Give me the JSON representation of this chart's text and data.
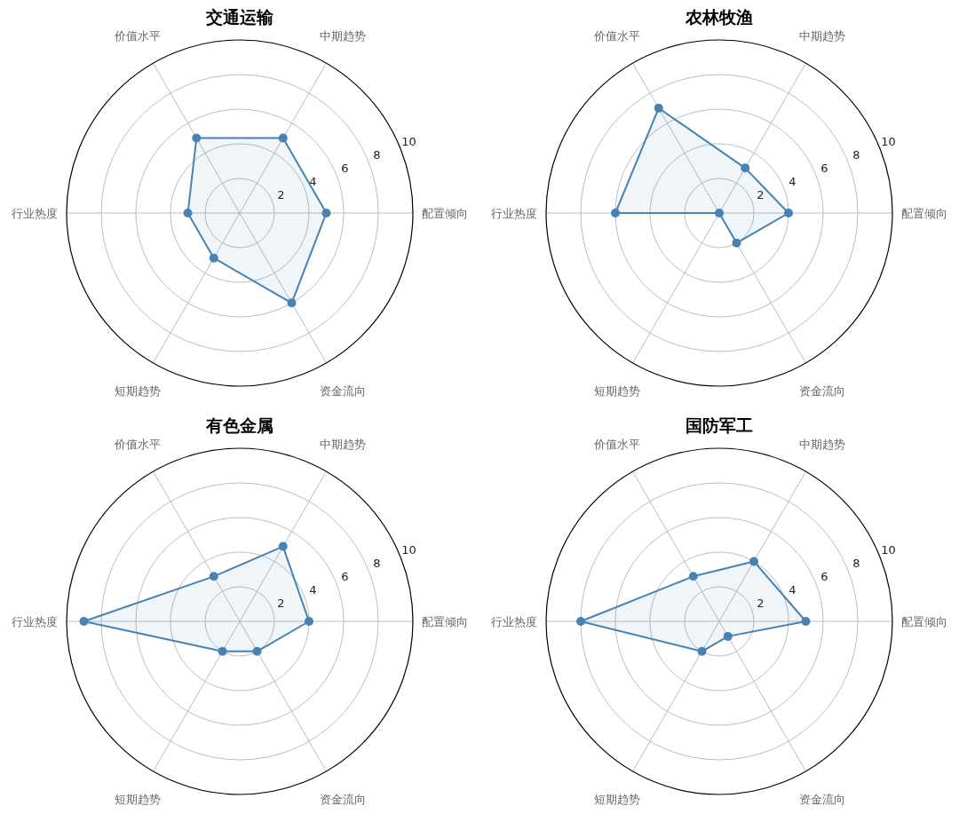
{
  "chart_data": [
    {
      "type": "radar",
      "title": "交通运输",
      "categories": [
        "中期趋势",
        "配置倾向",
        "资金流向",
        "短期趋势",
        "行业热度",
        "价值水平"
      ],
      "series": [
        {
          "color": "#4682b4",
          "values": [
            5,
            5,
            6,
            3,
            3,
            5
          ]
        }
      ],
      "ylim": [
        0,
        10
      ],
      "yticks": [
        2,
        4,
        6,
        8,
        10
      ],
      "grid": true,
      "marker": "circle"
    },
    {
      "type": "radar",
      "title": "农林牧渔",
      "categories": [
        "中期趋势",
        "配置倾向",
        "资金流向",
        "短期趋势",
        "行业热度",
        "价值水平"
      ],
      "series": [
        {
          "color": "#4682b4",
          "values": [
            3,
            4,
            2,
            0,
            6,
            7
          ]
        }
      ],
      "ylim": [
        0,
        10
      ],
      "yticks": [
        2,
        4,
        6,
        8,
        10
      ],
      "grid": true,
      "marker": "circle"
    },
    {
      "type": "radar",
      "title": "有色金属",
      "categories": [
        "中期趋势",
        "配置倾向",
        "资金流向",
        "短期趋势",
        "行业热度",
        "价值水平"
      ],
      "series": [
        {
          "color": "#4682b4",
          "values": [
            5,
            4,
            2,
            2,
            9,
            3
          ]
        }
      ],
      "ylim": [
        0,
        10
      ],
      "yticks": [
        2,
        4,
        6,
        8,
        10
      ],
      "grid": true,
      "marker": "circle"
    },
    {
      "type": "radar",
      "title": "国防军工",
      "categories": [
        "中期趋势",
        "配置倾向",
        "资金流向",
        "短期趋势",
        "行业热度",
        "价值水平"
      ],
      "series": [
        {
          "color": "#4682b4",
          "values": [
            4,
            5,
            1,
            2,
            8,
            3
          ]
        }
      ],
      "ylim": [
        0,
        10
      ],
      "yticks": [
        2,
        4,
        6,
        8,
        10
      ],
      "grid": true,
      "marker": "circle"
    }
  ]
}
